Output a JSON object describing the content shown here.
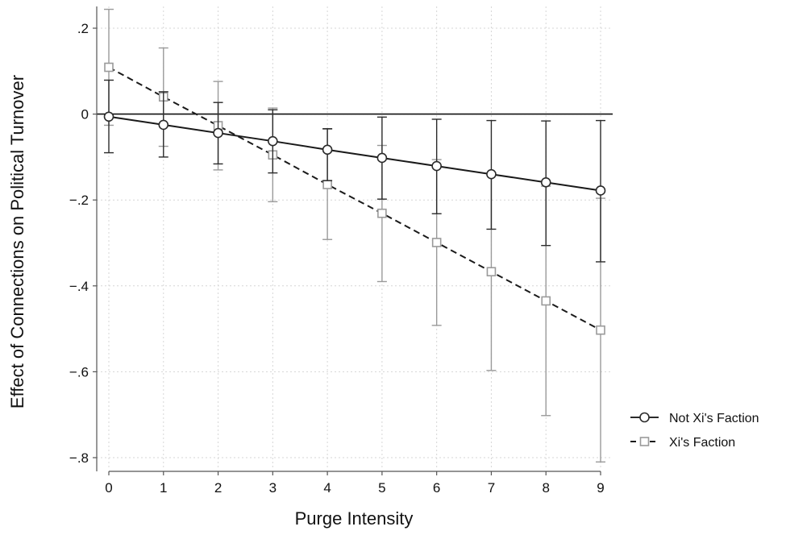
{
  "chart_data": {
    "type": "line",
    "title": "",
    "xlabel": "Purge Intensity",
    "ylabel": "Effect of Connections on Political Turnover",
    "x": [
      0,
      1,
      2,
      3,
      4,
      5,
      6,
      7,
      8,
      9
    ],
    "x_tick_labels": [
      "0",
      "1",
      "2",
      "3",
      "4",
      "5",
      "6",
      "7",
      "8",
      "9"
    ],
    "xlim": [
      0,
      9
    ],
    "ylim": [
      -0.8,
      0.2
    ],
    "y_ticks": [
      0.2,
      0,
      -0.2,
      -0.4,
      -0.6,
      -0.8
    ],
    "y_tick_labels": [
      ".2",
      "0",
      "−.2",
      "−.4",
      "−.6",
      "−.8"
    ],
    "grid": true,
    "reference_line_y": 0,
    "legend_position": "right",
    "series": [
      {
        "name": "Not Xi's Faction",
        "marker": "circle",
        "line_style": "solid",
        "color": "#2b2b2b",
        "values": [
          -0.006,
          -0.025,
          -0.044,
          -0.063,
          -0.083,
          -0.102,
          -0.121,
          -0.14,
          -0.159,
          -0.178
        ],
        "ci_lower": [
          -0.09,
          -0.1,
          -0.116,
          -0.137,
          -0.155,
          -0.198,
          -0.232,
          -0.268,
          -0.306,
          -0.344
        ],
        "ci_upper": [
          0.079,
          0.052,
          0.027,
          0.01,
          -0.034,
          -0.007,
          -0.012,
          -0.015,
          -0.016,
          -0.015
        ]
      },
      {
        "name": "Xi's Faction",
        "marker": "square",
        "line_style": "dashed",
        "color": "#9a9a9a",
        "values": [
          0.109,
          0.04,
          -0.027,
          -0.095,
          -0.164,
          -0.231,
          -0.299,
          -0.367,
          -0.435,
          -0.503
        ],
        "ci_lower": [
          -0.026,
          -0.075,
          -0.13,
          -0.204,
          -0.292,
          -0.39,
          -0.492,
          -0.597,
          -0.702,
          -0.81
        ],
        "ci_upper": [
          0.244,
          0.154,
          0.076,
          0.014,
          -0.035,
          -0.073,
          -0.106,
          -0.137,
          -0.168,
          -0.196
        ]
      }
    ]
  }
}
